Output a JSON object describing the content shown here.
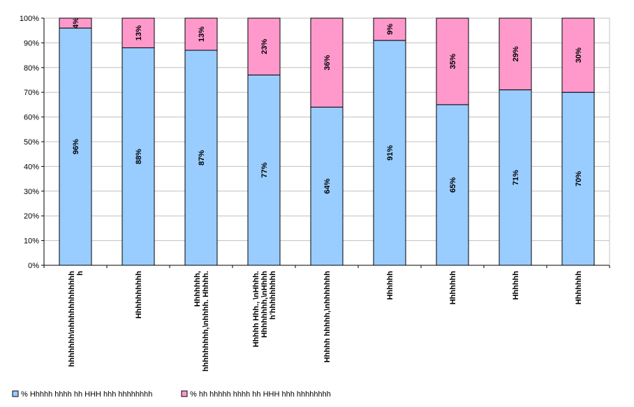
{
  "chart_data": {
    "type": "bar",
    "stacked": true,
    "percent_stacked": true,
    "categories": [
      "hhhhhhh\\nhhhhhhhhhhhh h",
      "Hhhhhhhhhh",
      "Hhhhhhh, hhhhhhhhh,\\nhhhh. Hhhhh.",
      "Hhhhh Hhh., \\nHhhh. Hhhhhhhh,\\nHhhh h'hhhhhhhhh",
      "Hhhhh hhhhh,\\nhhhhhhh",
      "Hhhhhh",
      "Hhhhhhh",
      "Hhhhhh",
      "Hhhhhhh"
    ],
    "category_lines": [
      [
        "hhhhhhh\\nhhhhhhhhhhhh",
        "h"
      ],
      [
        "Hhhhhhhhhh"
      ],
      [
        "Hhhhhhh,",
        "hhhhhhhhh,\\nhhhh. Hhhhh."
      ],
      [
        "Hhhhh Hhh., \\nHhhh.",
        "Hhhhhhhh,\\nHhhh",
        "h'hhhhhhhhh"
      ],
      [
        "Hhhhh hhhhh,\\nhhhhhhh"
      ],
      [
        "Hhhhhh"
      ],
      [
        "Hhhhhhh"
      ],
      [
        "Hhhhhh"
      ],
      [
        "Hhhhhhh"
      ]
    ],
    "series": [
      {
        "name": "% Hhhhh hhhh hh HHH hhh hhhhhhhh",
        "values": [
          96,
          88,
          87,
          77,
          64,
          91,
          65,
          71,
          70
        ],
        "labels": [
          "96%",
          "88%",
          "87%",
          "77%",
          "64%",
          "91%",
          "65%",
          "71%",
          "70%"
        ],
        "color": "#99ccff"
      },
      {
        "name": "% hh hhhhh hhhh hh HHH hhh hhhhhhhh",
        "values": [
          4,
          12.5,
          13,
          23,
          36.5,
          9,
          35,
          29,
          30
        ],
        "labels": [
          "4%",
          "13%",
          "13%",
          "23%",
          "36%",
          "9%",
          "35%",
          "29%",
          "30%"
        ],
        "color": "#ff99cc"
      }
    ],
    "y_ticks": [
      "0%",
      "10%",
      "20%",
      "30%",
      "40%",
      "50%",
      "60%",
      "70%",
      "80%",
      "90%",
      "100%"
    ],
    "ylim": [
      0,
      100
    ],
    "grid": true,
    "legend_position": "bottom",
    "title": "",
    "xlabel": "",
    "ylabel": ""
  }
}
